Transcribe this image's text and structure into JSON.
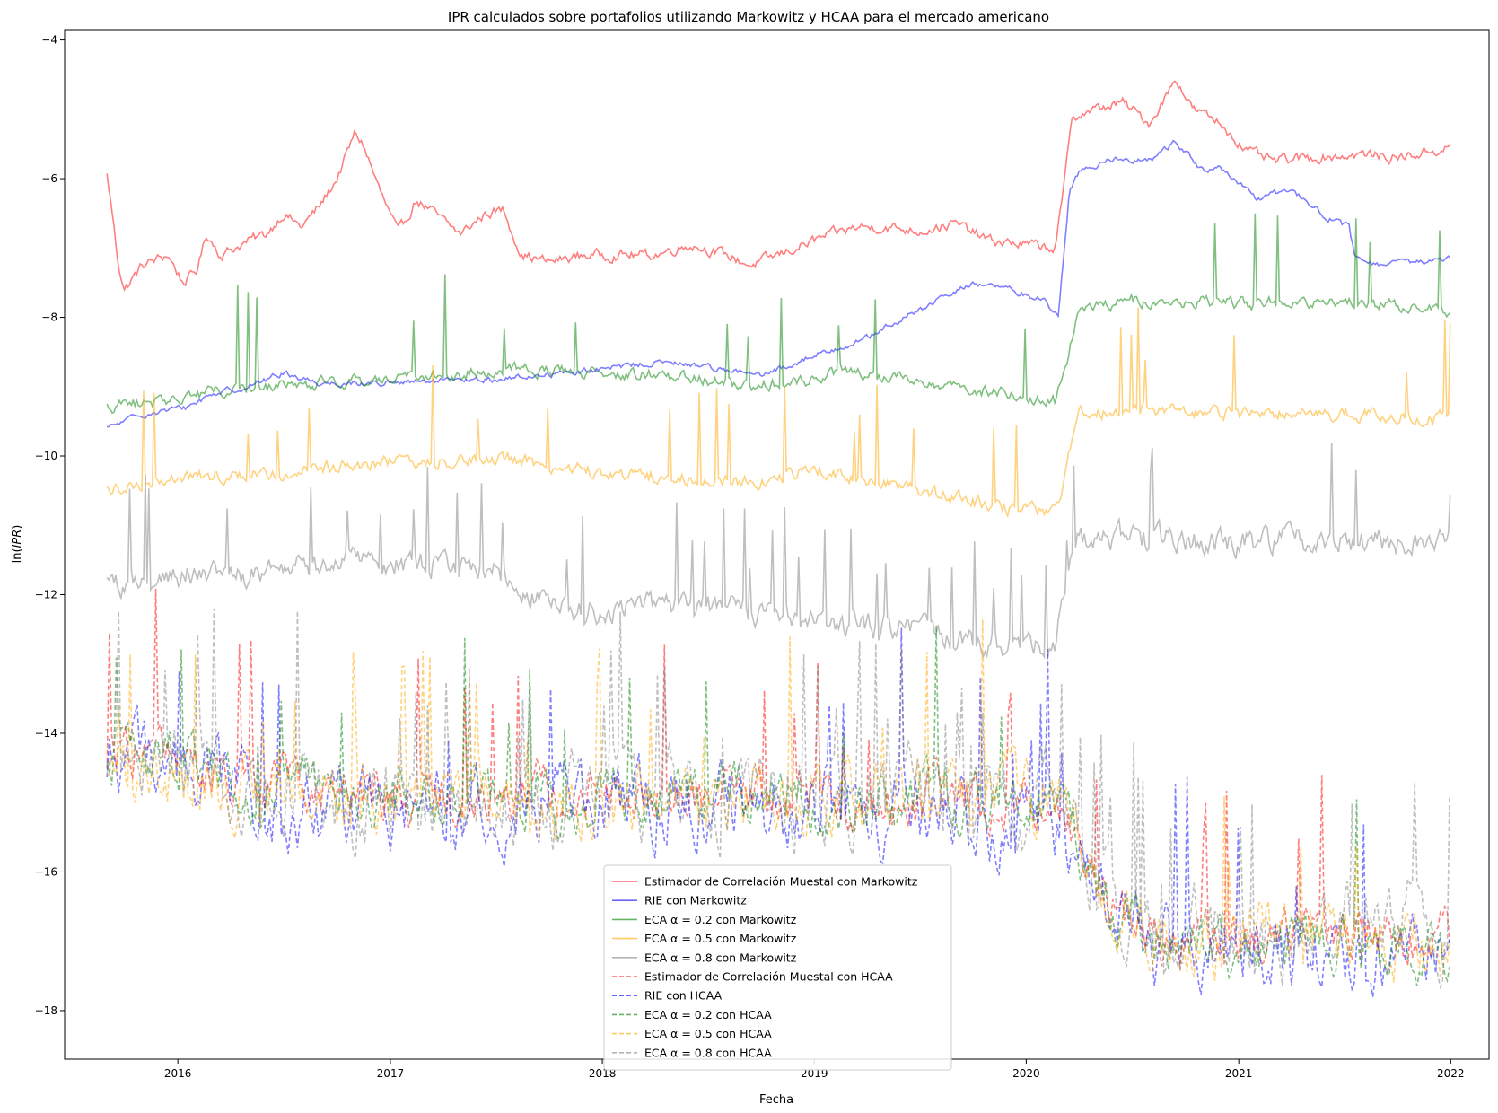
{
  "chart_data": {
    "type": "line",
    "title": "IPR calculados sobre portafolios utilizando Markowitz y HCAA para el mercado americano",
    "xlabel": "Fecha",
    "ylabel": "ln(IPR)",
    "xlim": [
      "2015-06-20",
      "2022-03-08"
    ],
    "ylim": [
      -18.7,
      -3.85
    ],
    "x_ticks": [
      "2016",
      "2017",
      "2018",
      "2019",
      "2020",
      "2021",
      "2022"
    ],
    "y_ticks": [
      "-4",
      "-6",
      "-8",
      "-10",
      "-12",
      "-14",
      "-16",
      "-18"
    ],
    "grid": false,
    "legend_position": "lower center",
    "series": [
      {
        "name": "Estimador de Correlación Muestal con Markowitz",
        "color": "#ff0000",
        "style": "solid",
        "noise": 0.06,
        "spike": 0,
        "points": [
          [
            "2015-09-01",
            -5.95
          ],
          [
            "2015-09-10",
            -6.5
          ],
          [
            "2015-09-20",
            -7.2
          ],
          [
            "2015-10-01",
            -7.6
          ],
          [
            "2015-11-01",
            -7.25
          ],
          [
            "2015-12-15",
            -7.1
          ],
          [
            "2016-01-10",
            -7.5
          ],
          [
            "2016-02-01",
            -7.35
          ],
          [
            "2016-02-20",
            -6.8
          ],
          [
            "2016-03-15",
            -7.1
          ],
          [
            "2016-05-01",
            -6.9
          ],
          [
            "2016-06-01",
            -6.8
          ],
          [
            "2016-07-01",
            -6.5
          ],
          [
            "2016-08-01",
            -6.7
          ],
          [
            "2016-09-01",
            -6.4
          ],
          [
            "2016-10-01",
            -6.0
          ],
          [
            "2016-11-01",
            -5.35
          ],
          [
            "2016-11-15",
            -5.5
          ],
          [
            "2016-12-15",
            -6.2
          ],
          [
            "2017-01-15",
            -6.8
          ],
          [
            "2017-02-15",
            -6.3
          ],
          [
            "2017-04-01",
            -6.6
          ],
          [
            "2017-05-01",
            -6.8
          ],
          [
            "2017-06-15",
            -6.5
          ],
          [
            "2017-07-15",
            -6.45
          ],
          [
            "2017-08-15",
            -7.1
          ],
          [
            "2017-10-01",
            -7.2
          ],
          [
            "2017-12-01",
            -7.1
          ],
          [
            "2018-02-01",
            -7.1
          ],
          [
            "2018-04-01",
            -7.1
          ],
          [
            "2018-06-01",
            -6.95
          ],
          [
            "2018-07-15",
            -7.05
          ],
          [
            "2018-09-15",
            -7.25
          ],
          [
            "2018-12-01",
            -7.0
          ],
          [
            "2019-01-15",
            -6.85
          ],
          [
            "2019-03-15",
            -6.7
          ],
          [
            "2019-05-01",
            -6.7
          ],
          [
            "2019-07-01",
            -6.75
          ],
          [
            "2019-09-01",
            -6.65
          ],
          [
            "2019-11-01",
            -6.9
          ],
          [
            "2020-01-01",
            -6.95
          ],
          [
            "2020-02-20",
            -7.0
          ],
          [
            "2020-03-05",
            -6.2
          ],
          [
            "2020-03-20",
            -5.1
          ],
          [
            "2020-05-01",
            -5.0
          ],
          [
            "2020-06-15",
            -4.9
          ],
          [
            "2020-08-01",
            -5.2
          ],
          [
            "2020-09-01",
            -4.75
          ],
          [
            "2020-09-15",
            -4.55
          ],
          [
            "2020-10-15",
            -5.0
          ],
          [
            "2020-12-01",
            -5.2
          ],
          [
            "2021-01-15",
            -5.6
          ],
          [
            "2021-03-01",
            -5.75
          ],
          [
            "2021-05-01",
            -5.7
          ],
          [
            "2021-08-01",
            -5.65
          ],
          [
            "2021-10-01",
            -5.7
          ],
          [
            "2021-12-31",
            -5.55
          ]
        ]
      },
      {
        "name": "RIE con Markowitz",
        "color": "#0000ff",
        "style": "solid",
        "noise": 0.035,
        "spike": 0,
        "points": [
          [
            "2015-09-01",
            -9.6
          ],
          [
            "2015-11-01",
            -9.4
          ],
          [
            "2016-01-15",
            -9.3
          ],
          [
            "2016-03-01",
            -9.1
          ],
          [
            "2016-05-01",
            -9.0
          ],
          [
            "2016-07-01",
            -8.8
          ],
          [
            "2016-09-01",
            -8.95
          ],
          [
            "2017-01-01",
            -8.95
          ],
          [
            "2017-07-01",
            -8.9
          ],
          [
            "2018-01-01",
            -8.75
          ],
          [
            "2018-04-01",
            -8.65
          ],
          [
            "2018-07-01",
            -8.7
          ],
          [
            "2018-10-01",
            -8.85
          ],
          [
            "2019-01-01",
            -8.55
          ],
          [
            "2019-04-01",
            -8.3
          ],
          [
            "2019-07-01",
            -7.9
          ],
          [
            "2019-10-01",
            -7.5
          ],
          [
            "2019-12-01",
            -7.6
          ],
          [
            "2020-02-01",
            -7.75
          ],
          [
            "2020-02-25",
            -8.0
          ],
          [
            "2020-03-15",
            -6.2
          ],
          [
            "2020-04-01",
            -5.9
          ],
          [
            "2020-06-01",
            -5.7
          ],
          [
            "2020-08-01",
            -5.75
          ],
          [
            "2020-09-15",
            -5.45
          ],
          [
            "2020-11-01",
            -5.9
          ],
          [
            "2020-12-01",
            -5.85
          ],
          [
            "2021-02-01",
            -6.3
          ],
          [
            "2021-04-01",
            -6.15
          ],
          [
            "2021-06-01",
            -6.55
          ],
          [
            "2021-07-10",
            -6.7
          ],
          [
            "2021-07-20",
            -7.15
          ],
          [
            "2021-09-01",
            -7.25
          ],
          [
            "2021-12-31",
            -7.15
          ]
        ]
      },
      {
        "name": "ECA α = 0.2 con Markowitz",
        "color": "#008000",
        "style": "solid",
        "noise": 0.07,
        "spike": 0.015,
        "points": [
          [
            "2015-09-01",
            -9.3
          ],
          [
            "2016-01-01",
            -9.15
          ],
          [
            "2016-06-01",
            -9.0
          ],
          [
            "2017-01-01",
            -8.9
          ],
          [
            "2017-08-01",
            -8.75
          ],
          [
            "2018-01-01",
            -8.8
          ],
          [
            "2018-06-01",
            -8.85
          ],
          [
            "2018-09-01",
            -9.0
          ],
          [
            "2019-01-01",
            -8.9
          ],
          [
            "2019-03-01",
            -8.75
          ],
          [
            "2019-06-01",
            -8.9
          ],
          [
            "2019-09-01",
            -9.0
          ],
          [
            "2019-12-01",
            -9.1
          ],
          [
            "2020-02-20",
            -9.2
          ],
          [
            "2020-03-15",
            -8.5
          ],
          [
            "2020-04-01",
            -7.9
          ],
          [
            "2020-07-01",
            -7.75
          ],
          [
            "2021-01-01",
            -7.8
          ],
          [
            "2021-06-01",
            -7.75
          ],
          [
            "2021-12-31",
            -7.9
          ]
        ]
      },
      {
        "name": "ECA α = 0.5 con Markowitz",
        "color": "#ffa500",
        "style": "solid",
        "noise": 0.08,
        "spike": 0.03,
        "points": [
          [
            "2015-09-01",
            -10.5
          ],
          [
            "2016-01-01",
            -10.3
          ],
          [
            "2016-06-01",
            -10.25
          ],
          [
            "2017-01-01",
            -10.1
          ],
          [
            "2017-08-01",
            -10.05
          ],
          [
            "2018-01-01",
            -10.25
          ],
          [
            "2018-06-01",
            -10.3
          ],
          [
            "2018-09-01",
            -10.4
          ],
          [
            "2019-01-01",
            -10.2
          ],
          [
            "2019-06-01",
            -10.45
          ],
          [
            "2019-12-01",
            -10.75
          ],
          [
            "2020-02-20",
            -10.85
          ],
          [
            "2020-03-15",
            -10.0
          ],
          [
            "2020-04-01",
            -9.4
          ],
          [
            "2020-07-01",
            -9.3
          ],
          [
            "2021-01-01",
            -9.4
          ],
          [
            "2021-06-01",
            -9.4
          ],
          [
            "2021-12-31",
            -9.45
          ]
        ]
      },
      {
        "name": "ECA α = 0.8 con Markowitz",
        "color": "#808080",
        "style": "solid",
        "noise": 0.15,
        "spike": 0.06,
        "points": [
          [
            "2015-09-01",
            -11.9
          ],
          [
            "2016-01-01",
            -11.7
          ],
          [
            "2016-06-01",
            -11.7
          ],
          [
            "2017-01-01",
            -11.5
          ],
          [
            "2017-07-01",
            -11.6
          ],
          [
            "2017-08-15",
            -11.9
          ],
          [
            "2017-12-01",
            -12.25
          ],
          [
            "2018-06-01",
            -12.1
          ],
          [
            "2018-12-01",
            -12.4
          ],
          [
            "2019-06-01",
            -12.5
          ],
          [
            "2019-12-01",
            -12.75
          ],
          [
            "2020-02-20",
            -12.7
          ],
          [
            "2020-03-15",
            -11.6
          ],
          [
            "2020-04-01",
            -11.2
          ],
          [
            "2020-07-01",
            -11.2
          ],
          [
            "2021-01-01",
            -11.25
          ],
          [
            "2021-06-01",
            -11.2
          ],
          [
            "2021-12-31",
            -11.3
          ]
        ]
      },
      {
        "name": "Estimador de Correlación Muestal con HCAA",
        "color": "#ff0000",
        "style": "dashed",
        "noise": 0.3,
        "spike": 0.04,
        "points": [
          [
            "2015-09-01",
            -14.25
          ],
          [
            "2016-06-01",
            -14.6
          ],
          [
            "2017-01-01",
            -14.9
          ],
          [
            "2018-01-01",
            -14.8
          ],
          [
            "2019-01-01",
            -15.0
          ],
          [
            "2020-02-20",
            -15.0
          ],
          [
            "2020-03-15",
            -15.4
          ],
          [
            "2020-06-01",
            -16.5
          ],
          [
            "2020-09-01",
            -17.1
          ],
          [
            "2021-06-01",
            -16.9
          ],
          [
            "2021-12-31",
            -17.0
          ]
        ]
      },
      {
        "name": "RIE con HCAA",
        "color": "#0000ff",
        "style": "dashed",
        "noise": 0.45,
        "spike": 0.03,
        "points": [
          [
            "2015-09-01",
            -14.3
          ],
          [
            "2016-06-01",
            -15.0
          ],
          [
            "2017-01-01",
            -15.1
          ],
          [
            "2018-01-01",
            -15.0
          ],
          [
            "2019-01-01",
            -15.1
          ],
          [
            "2020-02-20",
            -15.3
          ],
          [
            "2020-03-15",
            -15.5
          ],
          [
            "2020-06-01",
            -16.6
          ],
          [
            "2020-09-01",
            -17.2
          ],
          [
            "2021-06-01",
            -17.1
          ],
          [
            "2021-12-31",
            -17.2
          ]
        ]
      },
      {
        "name": "ECA α = 0.2 con HCAA",
        "color": "#008000",
        "style": "dashed",
        "noise": 0.35,
        "spike": 0.03,
        "points": [
          [
            "2015-09-01",
            -14.2
          ],
          [
            "2016-06-01",
            -14.8
          ],
          [
            "2017-01-01",
            -14.9
          ],
          [
            "2018-01-01",
            -14.9
          ],
          [
            "2019-01-01",
            -14.9
          ],
          [
            "2020-02-20",
            -15.0
          ],
          [
            "2020-03-15",
            -15.3
          ],
          [
            "2020-06-01",
            -16.6
          ],
          [
            "2020-09-01",
            -17.1
          ],
          [
            "2021-06-01",
            -17.0
          ],
          [
            "2021-12-31",
            -17.2
          ]
        ]
      },
      {
        "name": "ECA α = 0.5 con HCAA",
        "color": "#ffa500",
        "style": "dashed",
        "noise": 0.4,
        "spike": 0.05,
        "points": [
          [
            "2015-09-01",
            -14.4
          ],
          [
            "2016-06-01",
            -14.9
          ],
          [
            "2017-01-01",
            -15.0
          ],
          [
            "2018-01-01",
            -15.0
          ],
          [
            "2019-01-01",
            -14.9
          ],
          [
            "2020-02-20",
            -14.9
          ],
          [
            "2020-03-15",
            -15.3
          ],
          [
            "2020-06-01",
            -16.5
          ],
          [
            "2020-09-01",
            -17.0
          ],
          [
            "2021-06-01",
            -16.9
          ],
          [
            "2021-12-31",
            -17.0
          ]
        ]
      },
      {
        "name": "ECA α = 0.8 con HCAA",
        "color": "#808080",
        "style": "dashed",
        "noise": 0.5,
        "spike": 0.09,
        "points": [
          [
            "2015-09-01",
            -14.4
          ],
          [
            "2016-06-01",
            -14.9
          ],
          [
            "2017-01-01",
            -15.0
          ],
          [
            "2018-01-01",
            -14.95
          ],
          [
            "2019-01-01",
            -14.9
          ],
          [
            "2020-02-20",
            -15.0
          ],
          [
            "2020-03-15",
            -15.2
          ],
          [
            "2020-06-01",
            -16.4
          ],
          [
            "2020-09-01",
            -16.9
          ],
          [
            "2021-06-01",
            -16.8
          ],
          [
            "2021-12-31",
            -16.8
          ]
        ]
      }
    ]
  }
}
